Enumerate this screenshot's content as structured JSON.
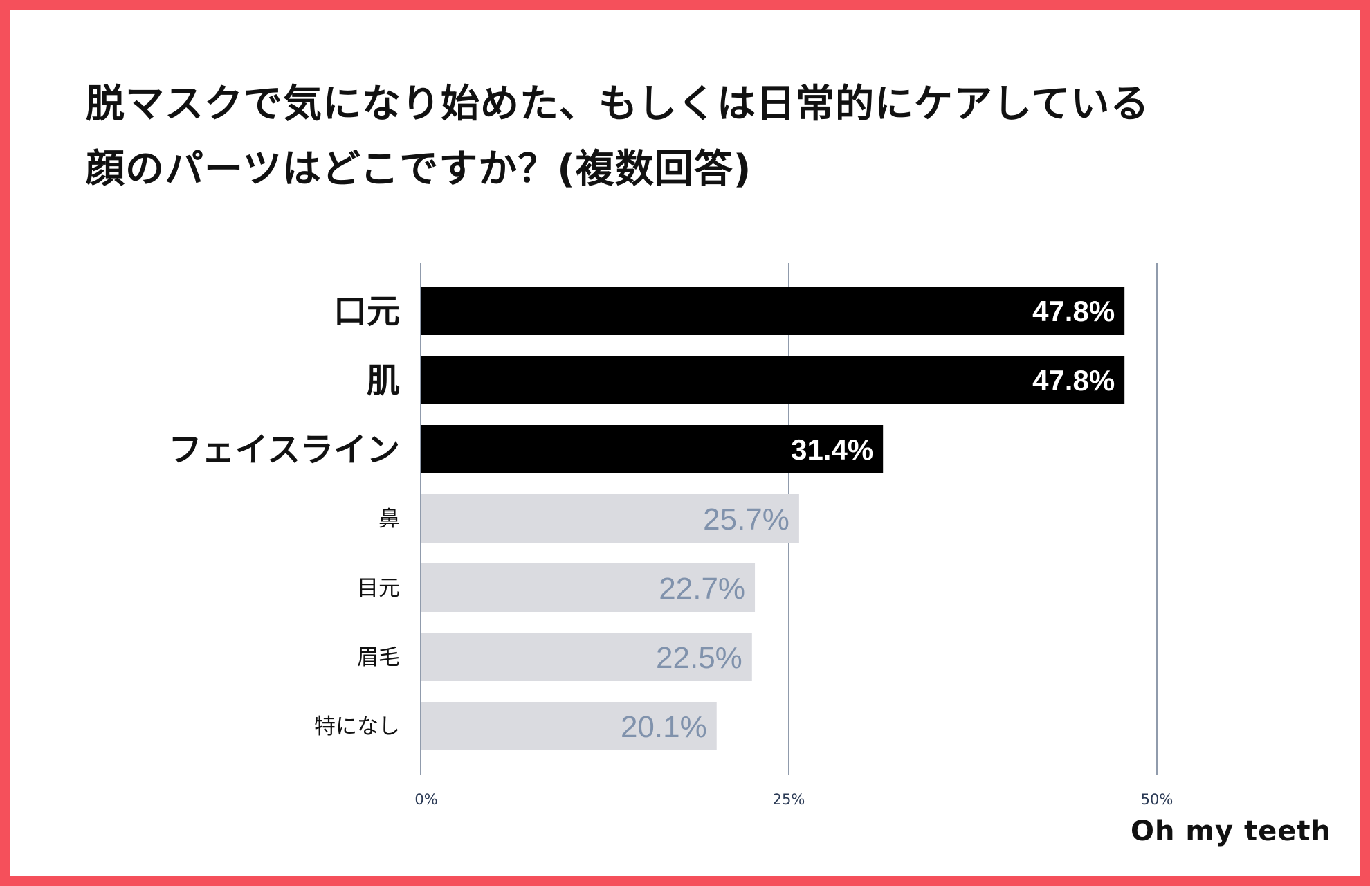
{
  "title": {
    "line1": "脱マスクで気になり始めた、もしくは日常的にケアしている",
    "line2": "顔のパーツはどこですか？(複数回答)"
  },
  "logo": "Oh my teeth",
  "colors": {
    "frame": "#f5505b",
    "highlight_bar": "#000000",
    "highlight_label": "#ffffff",
    "muted_bar": "#dadbe0",
    "muted_label": "#8092ac",
    "gridline": "#6b7a90"
  },
  "chart_data": {
    "type": "bar",
    "orientation": "horizontal",
    "categories": [
      "口元",
      "肌",
      "フェイスライン",
      "鼻",
      "目元",
      "眉毛",
      "特になし"
    ],
    "values": [
      47.8,
      47.8,
      31.4,
      25.7,
      22.7,
      22.5,
      20.1
    ],
    "value_labels": [
      "47.8%",
      "47.8%",
      "31.4%",
      "25.7%",
      "22.7%",
      "22.5%",
      "20.1%"
    ],
    "highlighted": [
      true,
      true,
      true,
      false,
      false,
      false,
      false
    ],
    "xlim": [
      0,
      50
    ],
    "xticks": [
      0,
      25,
      50
    ],
    "xtick_labels": [
      "0%",
      "25%",
      "50%"
    ],
    "grid": true,
    "legend": "none"
  }
}
